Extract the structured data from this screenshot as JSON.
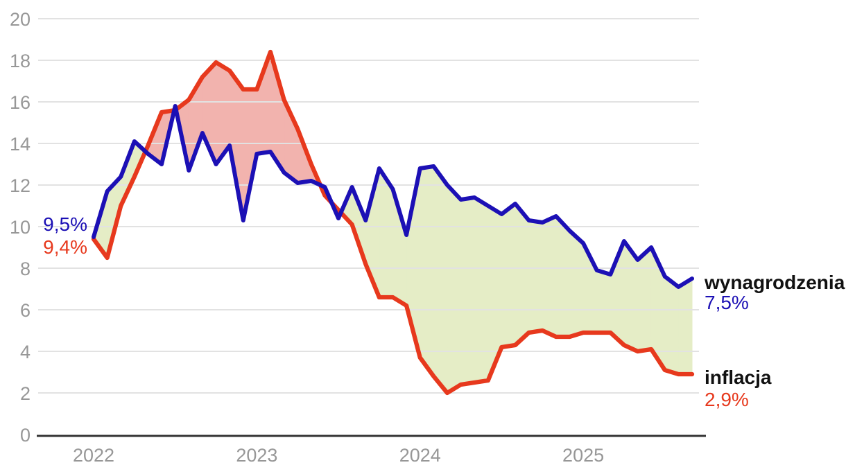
{
  "chart_data": {
    "type": "line",
    "title": "",
    "grid": "horizontal",
    "legend_position": "inline-right",
    "ylim": [
      0,
      20
    ],
    "y_ticks": [
      0,
      2,
      4,
      6,
      8,
      10,
      12,
      14,
      16,
      18,
      20
    ],
    "x_tick_labels": [
      "2022",
      "2023",
      "2024",
      "2025"
    ],
    "x": [
      "2022-01",
      "2022-02",
      "2022-03",
      "2022-04",
      "2022-05",
      "2022-06",
      "2022-07",
      "2022-08",
      "2022-09",
      "2022-10",
      "2022-11",
      "2022-12",
      "2023-01",
      "2023-02",
      "2023-03",
      "2023-04",
      "2023-05",
      "2023-06",
      "2023-07",
      "2023-08",
      "2023-09",
      "2023-10",
      "2023-11",
      "2023-12",
      "2024-01",
      "2024-02",
      "2024-03",
      "2024-04",
      "2024-05",
      "2024-06",
      "2024-07",
      "2024-08",
      "2024-09",
      "2024-10",
      "2024-11",
      "2024-12",
      "2025-01",
      "2025-02",
      "2025-03",
      "2025-04",
      "2025-05",
      "2025-06",
      "2025-07",
      "2025-08",
      "2025-09"
    ],
    "series": [
      {
        "name": "wynagrodzenia",
        "color": "#1c10b5",
        "start_label": "9,5%",
        "end_label": "7,5%",
        "values": [
          9.5,
          11.7,
          12.4,
          14.1,
          13.5,
          13.0,
          15.8,
          12.7,
          14.5,
          13.0,
          13.9,
          10.3,
          13.5,
          13.6,
          12.6,
          12.1,
          12.2,
          11.9,
          10.4,
          11.9,
          10.3,
          12.8,
          11.8,
          9.6,
          12.8,
          12.9,
          12.0,
          11.3,
          11.4,
          11.0,
          10.6,
          11.1,
          10.3,
          10.2,
          10.5,
          9.8,
          9.2,
          7.9,
          7.7,
          9.3,
          8.4,
          9.0,
          7.6,
          7.1,
          7.5
        ]
      },
      {
        "name": "inflacja",
        "color": "#e7391d",
        "start_label": "9,4%",
        "end_label": "2,9%",
        "values": [
          9.4,
          8.5,
          11.0,
          12.4,
          13.9,
          15.5,
          15.6,
          16.1,
          17.2,
          17.9,
          17.5,
          16.6,
          16.6,
          18.4,
          16.1,
          14.7,
          13.0,
          11.5,
          10.8,
          10.1,
          8.2,
          6.6,
          6.6,
          6.2,
          3.7,
          2.8,
          2.0,
          2.4,
          2.5,
          2.6,
          4.2,
          4.3,
          4.9,
          5.0,
          4.7,
          4.7,
          4.9,
          4.9,
          4.9,
          4.3,
          4.0,
          4.1,
          3.1,
          2.9,
          2.9
        ]
      }
    ]
  },
  "colors": {
    "fill_wages_above": "#e5edc6",
    "fill_inflation_above": "#f2b3ae",
    "gridline": "#e2e2e2",
    "axis_line": "#333333",
    "tick_text": "#979797",
    "label_text": "#111111"
  }
}
